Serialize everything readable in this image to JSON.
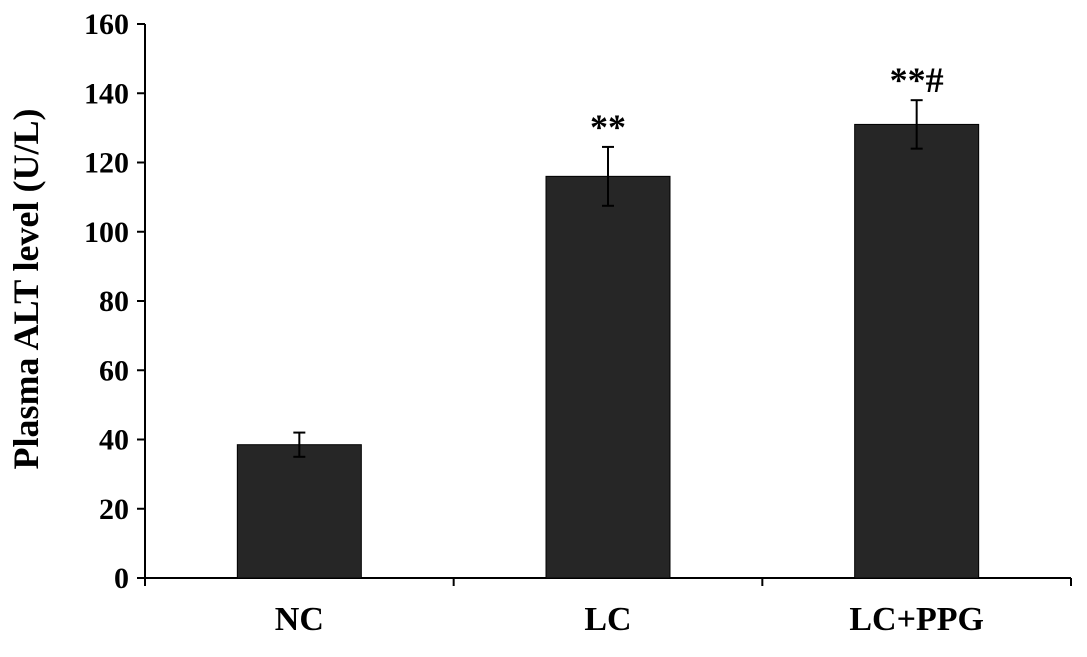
{
  "chart_data": {
    "type": "bar",
    "categories": [
      "NC",
      "LC",
      "LC+PPG"
    ],
    "values": [
      38.5,
      116,
      131
    ],
    "errors": [
      3.5,
      8.5,
      7
    ],
    "annotations": [
      "",
      "**",
      "**#"
    ],
    "ylabel": "Plasma ALT level (U/L)",
    "xlabel": "",
    "ylim": [
      0,
      160
    ],
    "yticks": [
      "0",
      "20",
      "40",
      "60",
      "80",
      "100",
      "120",
      "140",
      "160"
    ],
    "grid": false,
    "bar_color": "#262626"
  }
}
